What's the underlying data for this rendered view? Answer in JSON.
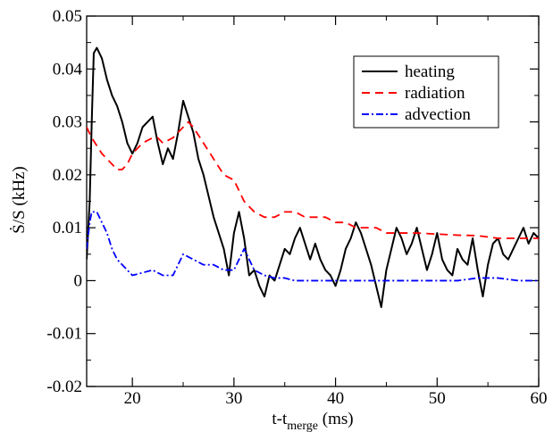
{
  "chart_data": {
    "type": "line",
    "xlabel_main": "t-t",
    "xlabel_sub": "merge",
    "xlabel_unit": " (ms)",
    "ylabel": "Ṡ/S (kHz)",
    "xlim": [
      15.5,
      60
    ],
    "ylim": [
      -0.02,
      0.05
    ],
    "xticks": [
      20,
      30,
      40,
      50,
      60
    ],
    "yticks": [
      -0.02,
      -0.01,
      0,
      0.01,
      0.02,
      0.03,
      0.04,
      0.05
    ],
    "xtick_labels": [
      "20",
      "30",
      "40",
      "50",
      "60"
    ],
    "ytick_labels": [
      "-0.02",
      "-0.01",
      "0",
      "0.01",
      "0.02",
      "0.03",
      "0.04",
      "0.05"
    ],
    "grid": false,
    "legend_position": "top-right",
    "series": [
      {
        "name": "heating",
        "color": "#000000",
        "dash": "solid",
        "x": [
          15.5,
          15.8,
          16.0,
          16.2,
          16.5,
          17.0,
          17.5,
          18.0,
          18.5,
          19.0,
          19.5,
          20.0,
          20.5,
          21.0,
          21.5,
          22.0,
          22.5,
          23.0,
          23.5,
          24.0,
          24.5,
          25.0,
          25.5,
          26.0,
          26.5,
          27.0,
          27.5,
          28.0,
          28.5,
          29.0,
          29.5,
          30.0,
          30.5,
          31.0,
          31.5,
          32.0,
          32.5,
          33.0,
          33.5,
          34.0,
          34.5,
          35.0,
          35.5,
          36.0,
          36.5,
          37.0,
          37.5,
          38.0,
          38.5,
          39.0,
          39.5,
          40.0,
          40.5,
          41.0,
          41.5,
          42.0,
          42.5,
          43.0,
          43.5,
          44.0,
          44.5,
          45.0,
          45.5,
          46.0,
          46.5,
          47.0,
          47.5,
          48.0,
          48.5,
          49.0,
          49.5,
          50.0,
          50.5,
          51.0,
          51.5,
          52.0,
          52.5,
          53.0,
          53.5,
          54.0,
          54.5,
          55.0,
          55.5,
          56.0,
          56.5,
          57.0,
          57.5,
          58.0,
          58.5,
          59.0,
          59.5,
          60.0
        ],
        "y": [
          0.004,
          0.015,
          0.03,
          0.043,
          0.044,
          0.042,
          0.038,
          0.035,
          0.033,
          0.03,
          0.026,
          0.024,
          0.026,
          0.029,
          0.03,
          0.031,
          0.026,
          0.022,
          0.025,
          0.023,
          0.028,
          0.034,
          0.031,
          0.028,
          0.023,
          0.02,
          0.016,
          0.012,
          0.009,
          0.006,
          0.001,
          0.009,
          0.013,
          0.008,
          0.001,
          0.002,
          -0.001,
          -0.003,
          0.001,
          0.0,
          0.003,
          0.006,
          0.005,
          0.008,
          0.01,
          0.007,
          0.004,
          0.007,
          0.004,
          0.002,
          0.001,
          -0.001,
          0.002,
          0.006,
          0.008,
          0.011,
          0.009,
          0.006,
          0.003,
          -0.001,
          -0.005,
          0.002,
          0.006,
          0.01,
          0.008,
          0.005,
          0.007,
          0.01,
          0.006,
          0.002,
          0.005,
          0.009,
          0.004,
          0.002,
          0.001,
          0.006,
          0.004,
          0.003,
          0.008,
          0.002,
          -0.003,
          0.003,
          0.007,
          0.008,
          0.005,
          0.004,
          0.006,
          0.008,
          0.01,
          0.007,
          0.009,
          0.008
        ]
      },
      {
        "name": "radiation",
        "color": "#ff0000",
        "dash": "9 6",
        "x": [
          15.5,
          16.0,
          17.0,
          18.0,
          18.5,
          19.0,
          19.5,
          20.0,
          21.0,
          22.0,
          22.5,
          23.0,
          24.0,
          25.0,
          25.5,
          26.0,
          27.0,
          28.0,
          29.0,
          30.0,
          30.5,
          31.0,
          32.0,
          33.0,
          34.0,
          35.0,
          36.0,
          37.0,
          38.0,
          39.0,
          40.0,
          41.0,
          42.0,
          43.0,
          44.0,
          45.0,
          46.0,
          47.0,
          48.0,
          50.0,
          52.0,
          54.0,
          56.0,
          58.0,
          60.0
        ],
        "y": [
          0.029,
          0.027,
          0.024,
          0.022,
          0.021,
          0.021,
          0.022,
          0.024,
          0.026,
          0.027,
          0.027,
          0.026,
          0.027,
          0.029,
          0.03,
          0.029,
          0.026,
          0.023,
          0.02,
          0.019,
          0.017,
          0.015,
          0.013,
          0.012,
          0.012,
          0.013,
          0.013,
          0.012,
          0.012,
          0.012,
          0.011,
          0.011,
          0.01,
          0.01,
          0.01,
          0.009,
          0.009,
          0.009,
          0.009,
          0.0088,
          0.0086,
          0.0085,
          0.008,
          0.008,
          0.008
        ]
      },
      {
        "name": "advection",
        "color": "#0000ff",
        "dash": "8 3 2 3",
        "x": [
          15.5,
          15.8,
          16.0,
          16.5,
          17.0,
          17.5,
          18.0,
          18.5,
          19.0,
          20.0,
          21.0,
          22.0,
          23.0,
          24.0,
          25.0,
          26.0,
          27.0,
          28.0,
          29.0,
          30.0,
          31.0,
          32.0,
          33.0,
          34.0,
          35.0,
          36.0,
          38.0,
          40.0,
          42.0,
          44.0,
          46.0,
          48.0,
          50.0,
          52.0,
          54.0,
          56.0,
          58.0,
          60.0
        ],
        "y": [
          0.006,
          0.011,
          0.013,
          0.013,
          0.011,
          0.009,
          0.006,
          0.004,
          0.003,
          0.001,
          0.0015,
          0.002,
          0.001,
          0.001,
          0.005,
          0.004,
          0.003,
          0.003,
          0.002,
          0.002,
          0.006,
          0.002,
          0.001,
          0.0005,
          0.0005,
          0.0,
          0.0,
          0.0,
          0.0,
          0.0,
          0.0,
          0.0,
          0.0,
          0.0,
          0.0005,
          0.0005,
          0.0,
          0.0
        ]
      }
    ]
  }
}
